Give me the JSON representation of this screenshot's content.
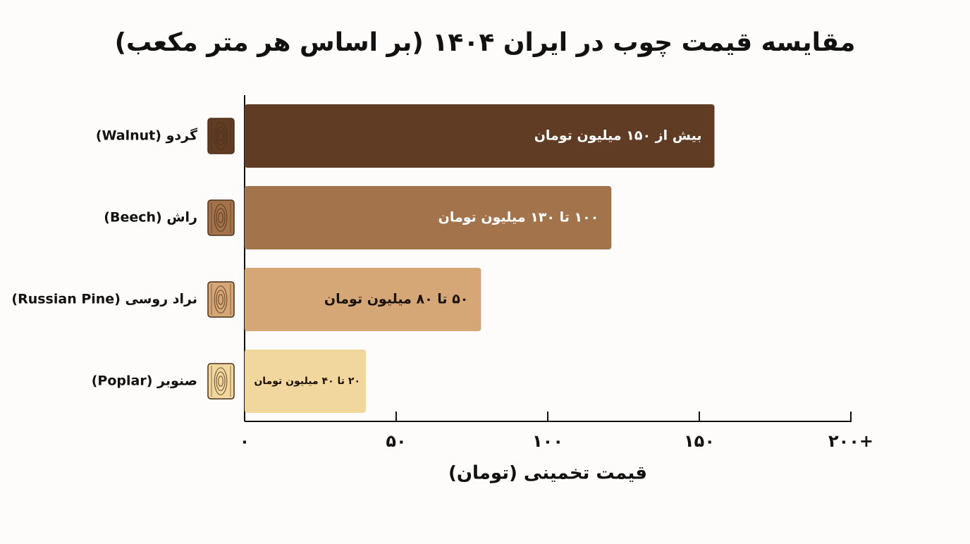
{
  "chart_data": {
    "type": "bar",
    "orientation": "horizontal",
    "title": "مقایسه قیمت چوب در ایران ۱۴۰۴ (بر اساس هر متر مکعب)",
    "x_label": "قیمت تخمینی (تومان)",
    "categories": [
      "گردو (Walnut)",
      "راش (Beech)",
      "نراد روسی (Russian Pine)",
      "صنوبر (Poplar)"
    ],
    "values": [
      155,
      121,
      78,
      40
    ],
    "value_labels": [
      "بیش از ۱۵۰ میلیون تومان",
      "۱۰۰ تا ۱۳۰ میلیون تومان",
      "۵۰ تا ۸۰ میلیون تومان",
      "۲۰ تا ۴۰ میلیون تومان"
    ],
    "colors": [
      "#5f3c23",
      "#a3734b",
      "#d5a676",
      "#f1d79d"
    ],
    "xlim": [
      0,
      200
    ],
    "xticks": [
      {
        "value": 0,
        "label": "۰"
      },
      {
        "value": 50,
        "label": "۵۰"
      },
      {
        "value": 100,
        "label": "۱۰۰"
      },
      {
        "value": 150,
        "label": "۱۵۰"
      },
      {
        "value": 200,
        "label": "۲۰۰+"
      }
    ],
    "grid": false
  }
}
